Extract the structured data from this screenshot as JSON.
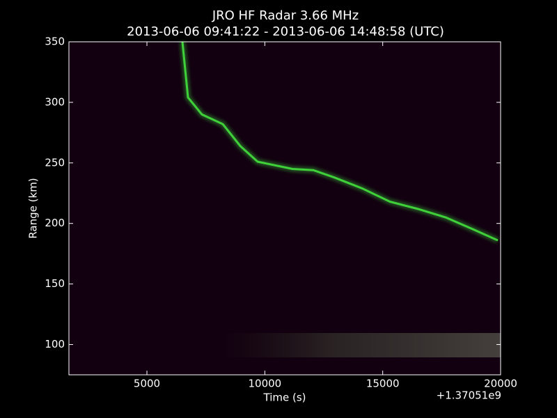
{
  "chart_data": {
    "type": "line",
    "title": "JRO HF Radar 3.66 MHz",
    "subtitle": "2013-06-06 09:41:22 - 2013-06-06 14:48:58 (UTC)",
    "x_label": "Time (s)",
    "y_label": "Range (km)",
    "x_offset_label": "+1.37051e9",
    "x": [
      6505,
      6742,
      7332,
      8218,
      8956,
      9695,
      11171,
      12057,
      12943,
      14124,
      15305,
      16487,
      17668,
      18849,
      19883
    ],
    "values": [
      350,
      304,
      290,
      282,
      264,
      251,
      245,
      244,
      238,
      229,
      218,
      212,
      205,
      195,
      186
    ],
    "color": "#3fd03a",
    "xlim": [
      1692,
      20000
    ],
    "ylim": [
      75,
      350
    ],
    "xticks": [
      5000,
      10000,
      15000,
      20000
    ],
    "yticks": [
      100,
      150,
      200,
      250,
      300,
      350
    ]
  }
}
